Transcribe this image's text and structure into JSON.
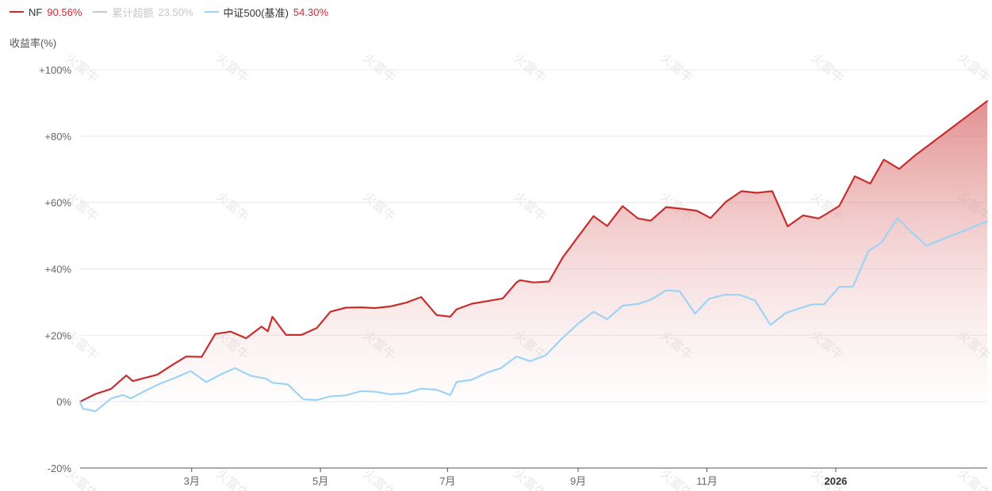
{
  "legend": {
    "items": [
      {
        "name": "NF",
        "value": "90.56%",
        "color": "#c62e2e",
        "muted": false
      },
      {
        "name": "累计超额",
        "value": "23.50%",
        "color": "#c8c8c8",
        "muted": true
      },
      {
        "name": "中证500(基准)",
        "value": "54.30%",
        "color": "#9dd4f5",
        "muted": false
      }
    ]
  },
  "watermark": "火富牛",
  "chart_data": {
    "type": "line",
    "ylabel": "收益率(%)",
    "ylim": [
      -20,
      100
    ],
    "yticks": [
      100,
      80,
      60,
      40,
      20,
      0,
      -20
    ],
    "ytick_labels": [
      "+100%",
      "+80%",
      "+60%",
      "+40%",
      "+20%",
      "0%",
      "-20%"
    ],
    "x_range": [
      0,
      100
    ],
    "xticks": [
      {
        "x": 12.3,
        "label": "3月",
        "bold": false
      },
      {
        "x": 26.5,
        "label": "5月",
        "bold": false
      },
      {
        "x": 40.5,
        "label": "7月",
        "bold": false
      },
      {
        "x": 54.9,
        "label": "9月",
        "bold": false
      },
      {
        "x": 69.1,
        "label": "11月",
        "bold": false
      },
      {
        "x": 83.3,
        "label": "2026",
        "bold": true
      }
    ],
    "series": [
      {
        "name": "NF",
        "color": "#c62e2e",
        "area": true,
        "x": [
          0,
          1.7,
          3.4,
          5.1,
          5.8,
          6.8,
          8.5,
          10.2,
          11.7,
          13.4,
          14.9,
          16.6,
          18.3,
          20.0,
          20.7,
          21.2,
          22.7,
          24.4,
          26.1,
          27.6,
          29.3,
          31.0,
          32.5,
          34.2,
          35.9,
          37.6,
          39.3,
          40.8,
          41.5,
          43.2,
          44.9,
          46.6,
          48.1,
          48.5,
          50.0,
          51.7,
          53.2,
          54.9,
          56.6,
          58.1,
          59.8,
          61.5,
          62.9,
          64.6,
          66.3,
          68.0,
          69.5,
          71.2,
          72.9,
          74.6,
          76.3,
          78.0,
          79.7,
          81.4,
          82.0,
          83.7,
          85.4,
          87.1,
          88.6,
          90.3,
          92.0,
          100
        ],
        "values": [
          0,
          2.3,
          3.8,
          7.9,
          6.2,
          6.9,
          8.1,
          11.1,
          13.6,
          13.5,
          20.4,
          21.1,
          19.1,
          22.6,
          21.2,
          25.6,
          20.1,
          20.1,
          22.2,
          27.1,
          28.3,
          28.4,
          28.2,
          28.7,
          29.8,
          31.5,
          26.1,
          25.6,
          27.8,
          29.5,
          30.3,
          31.1,
          35.9,
          36.6,
          35.9,
          36.2,
          43.4,
          49.7,
          55.9,
          52.9,
          58.9,
          55.2,
          54.5,
          58.6,
          58.1,
          57.5,
          55.3,
          60.2,
          63.4,
          62.9,
          63.4,
          52.8,
          56.1,
          55.2,
          56.1,
          59.0,
          67.9,
          65.7,
          72.9,
          70.1,
          74.1,
          90.56
        ]
      },
      {
        "name": "中证500(基准)",
        "color": "#9dd4f5",
        "area": false,
        "x": [
          0,
          0.3,
          1.7,
          3.4,
          4.7,
          5.6,
          7.3,
          8.8,
          10.5,
          12.2,
          13.9,
          15.6,
          17.1,
          18.8,
          20.5,
          21.2,
          22.9,
          24.6,
          26.1,
          27.6,
          29.3,
          31.0,
          32.5,
          34.2,
          35.9,
          37.6,
          39.3,
          40.8,
          41.5,
          43.2,
          44.9,
          46.4,
          48.1,
          49.6,
          51.3,
          53.0,
          54.9,
          56.6,
          58.1,
          59.8,
          61.5,
          62.9,
          64.6,
          66.1,
          67.8,
          69.3,
          71.0,
          72.7,
          74.4,
          76.1,
          77.8,
          79.3,
          80.7,
          82.0,
          83.7,
          85.2,
          86.9,
          88.4,
          90.1,
          91.6,
          93.3,
          100
        ],
        "values": [
          0,
          -2.1,
          -2.9,
          0.9,
          2.0,
          1.0,
          3.4,
          5.4,
          7.2,
          9.2,
          5.9,
          8.3,
          10.1,
          7.8,
          6.9,
          5.7,
          5.2,
          0.7,
          0.5,
          1.6,
          1.9,
          3.2,
          3.0,
          2.2,
          2.5,
          3.9,
          3.6,
          2.0,
          5.9,
          6.6,
          8.8,
          10.1,
          13.6,
          12.2,
          13.9,
          18.7,
          23.5,
          27.1,
          24.8,
          28.9,
          29.4,
          30.7,
          33.5,
          33.3,
          26.5,
          30.9,
          32.2,
          32.2,
          30.5,
          23.1,
          26.7,
          28.1,
          29.3,
          29.3,
          34.6,
          34.6,
          45.3,
          48.1,
          55.3,
          51.2,
          47.0,
          54.3
        ]
      }
    ]
  }
}
